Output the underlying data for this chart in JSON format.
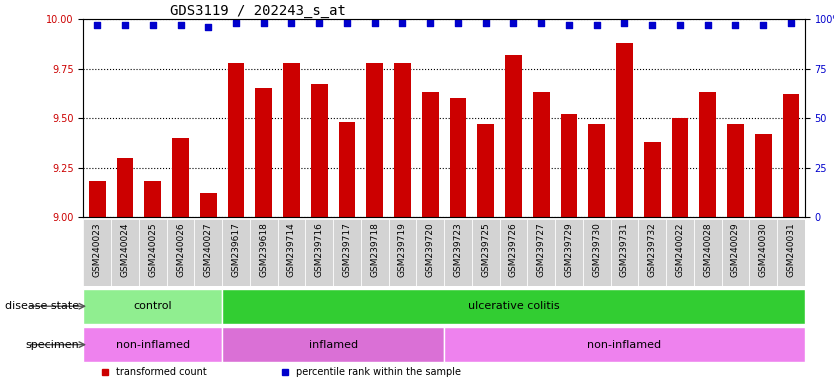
{
  "title": "GDS3119 / 202243_s_at",
  "samples": [
    "GSM240023",
    "GSM240024",
    "GSM240025",
    "GSM240026",
    "GSM240027",
    "GSM239617",
    "GSM239618",
    "GSM239714",
    "GSM239716",
    "GSM239717",
    "GSM239718",
    "GSM239719",
    "GSM239720",
    "GSM239723",
    "GSM239725",
    "GSM239726",
    "GSM239727",
    "GSM239729",
    "GSM239730",
    "GSM239731",
    "GSM239732",
    "GSM240022",
    "GSM240028",
    "GSM240029",
    "GSM240030",
    "GSM240031"
  ],
  "transformed_counts": [
    9.18,
    9.3,
    9.18,
    9.4,
    9.12,
    9.78,
    9.65,
    9.78,
    9.67,
    9.48,
    9.78,
    9.78,
    9.63,
    9.6,
    9.47,
    9.82,
    9.63,
    9.52,
    9.47,
    9.88,
    9.38,
    9.5,
    9.63,
    9.47,
    9.42,
    9.62
  ],
  "percentile_ranks": [
    97,
    97,
    97,
    97,
    96,
    98,
    98,
    98,
    98,
    98,
    98,
    98,
    98,
    98,
    98,
    98,
    98,
    97,
    97,
    98,
    97,
    97,
    97,
    97,
    97,
    98
  ],
  "bar_color": "#cc0000",
  "dot_color": "#0000cc",
  "ylim_left": [
    9.0,
    10.0
  ],
  "ylim_right": [
    0,
    100
  ],
  "yticks_left": [
    9.0,
    9.25,
    9.5,
    9.75,
    10.0
  ],
  "yticks_right": [
    0,
    25,
    50,
    75,
    100
  ],
  "disease_state_groups": [
    {
      "label": "control",
      "start": 0,
      "end": 5,
      "color": "#90ee90"
    },
    {
      "label": "ulcerative colitis",
      "start": 5,
      "end": 26,
      "color": "#32cd32"
    }
  ],
  "specimen_groups": [
    {
      "label": "non-inflamed",
      "start": 0,
      "end": 5,
      "color": "#ee82ee"
    },
    {
      "label": "inflamed",
      "start": 5,
      "end": 13,
      "color": "#da70d6"
    },
    {
      "label": "non-inflamed",
      "start": 13,
      "end": 26,
      "color": "#ee82ee"
    }
  ],
  "legend": [
    {
      "label": "transformed count",
      "color": "#cc0000"
    },
    {
      "label": "percentile rank within the sample",
      "color": "#0000cc"
    }
  ],
  "tick_bg_color": "#d3d3d3",
  "title_fontsize": 10,
  "tick_fontsize": 6.5,
  "ann_fontsize": 8.0,
  "label_fontsize": 8.0
}
